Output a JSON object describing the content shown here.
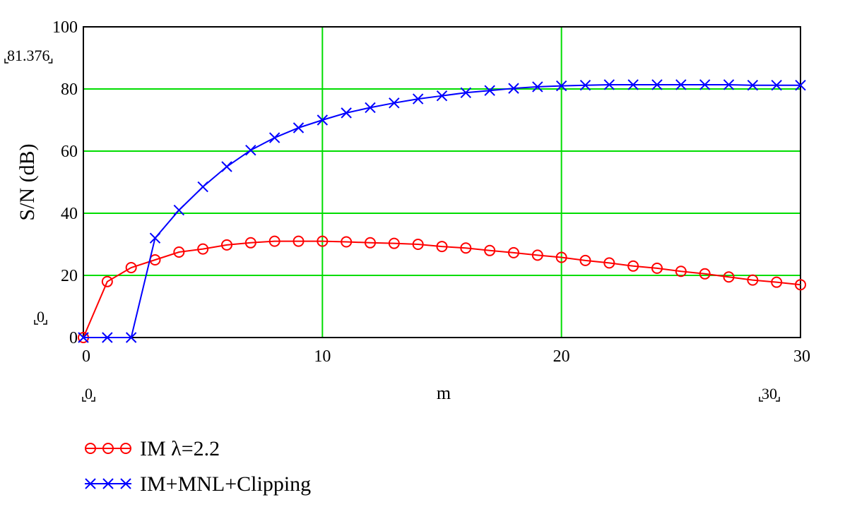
{
  "chart_data": {
    "type": "line",
    "xlabel": "m",
    "ylabel": "S/N (dB)",
    "xlim": [
      0,
      30
    ],
    "ylim": [
      0,
      100
    ],
    "x_ticks": [
      "0",
      "10",
      "20",
      "30"
    ],
    "y_ticks": [
      "0",
      "20",
      "40",
      "60",
      "80",
      "100"
    ],
    "grid": true,
    "grid_color": "#00dd00",
    "legend_position": "bottom-left",
    "range_markers": {
      "x_min": "0",
      "x_max": "30",
      "y_min": "0",
      "y_max": "81.376"
    },
    "x": [
      0,
      1,
      2,
      3,
      4,
      5,
      6,
      7,
      8,
      9,
      10,
      11,
      12,
      13,
      14,
      15,
      16,
      17,
      18,
      19,
      20,
      21,
      22,
      23,
      24,
      25,
      26,
      27,
      28,
      29,
      30
    ],
    "series": [
      {
        "name": "IM λ=2.2",
        "color": "#ff0000",
        "marker": "circle",
        "values": [
          0,
          18,
          22.5,
          25,
          27.5,
          28.5,
          29.8,
          30.5,
          31,
          31,
          31,
          30.8,
          30.5,
          30.3,
          30,
          29.3,
          28.8,
          28,
          27.3,
          26.5,
          25.8,
          24.8,
          24,
          23,
          22.3,
          21.3,
          20.5,
          19.5,
          18.5,
          17.8,
          17
        ]
      },
      {
        "name": "IM+MNL+Clipping",
        "color": "#0000ff",
        "marker": "x",
        "values": [
          0,
          0,
          0,
          32,
          41,
          48.5,
          55,
          60.3,
          64.3,
          67.5,
          70,
          72.3,
          74,
          75.5,
          76.8,
          77.8,
          78.8,
          79.5,
          80.2,
          80.7,
          81,
          81.2,
          81.376,
          81.376,
          81.376,
          81.376,
          81.376,
          81.376,
          81.2,
          81.2,
          81.2
        ]
      }
    ]
  }
}
